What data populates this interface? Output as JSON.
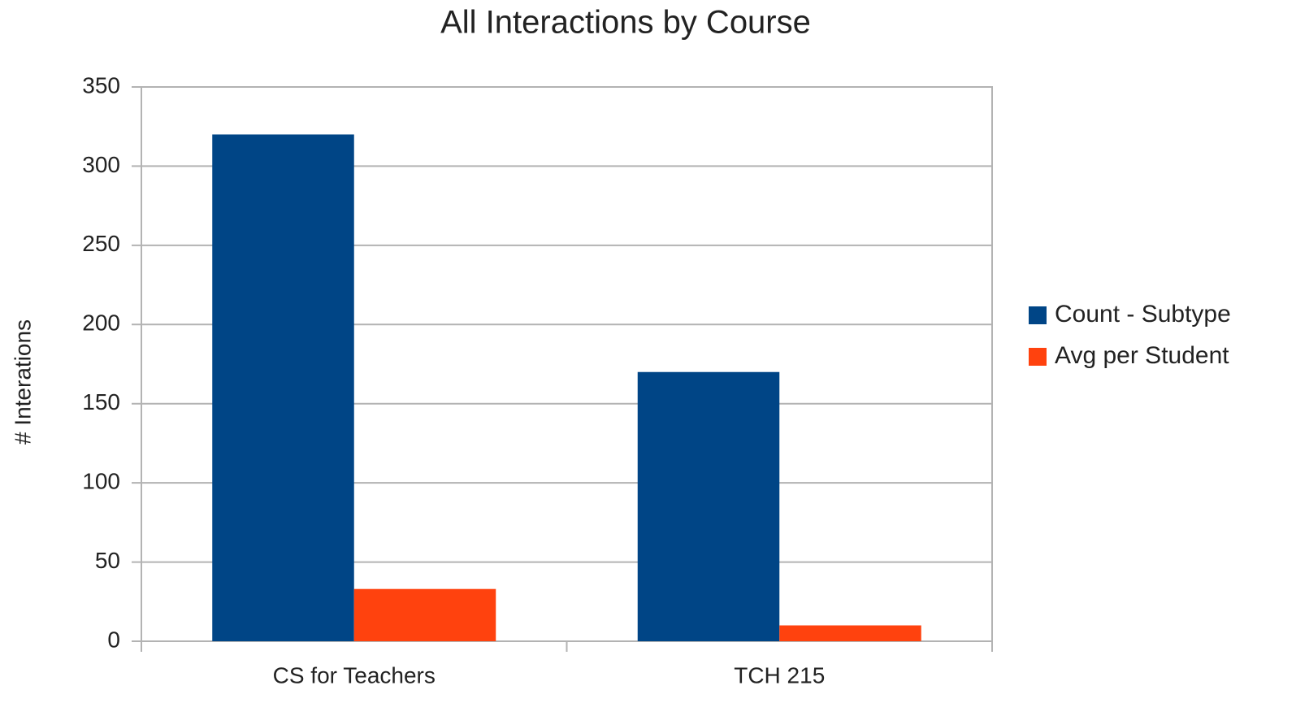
{
  "chart_data": {
    "type": "bar",
    "title": "All Interactions by Course",
    "y_label": "# Interations",
    "categories": [
      "CS for Teachers",
      "TCH 215"
    ],
    "series": [
      {
        "name": "Count - Subtype",
        "color": "#004586",
        "values": [
          320,
          170
        ]
      },
      {
        "name": "Avg per Student",
        "color": "#ff420e",
        "values": [
          33,
          10
        ]
      }
    ],
    "ylim": [
      0,
      350
    ],
    "yticks": [
      0,
      50,
      100,
      150,
      200,
      250,
      300,
      350
    ],
    "grid": true,
    "legend": "right"
  }
}
